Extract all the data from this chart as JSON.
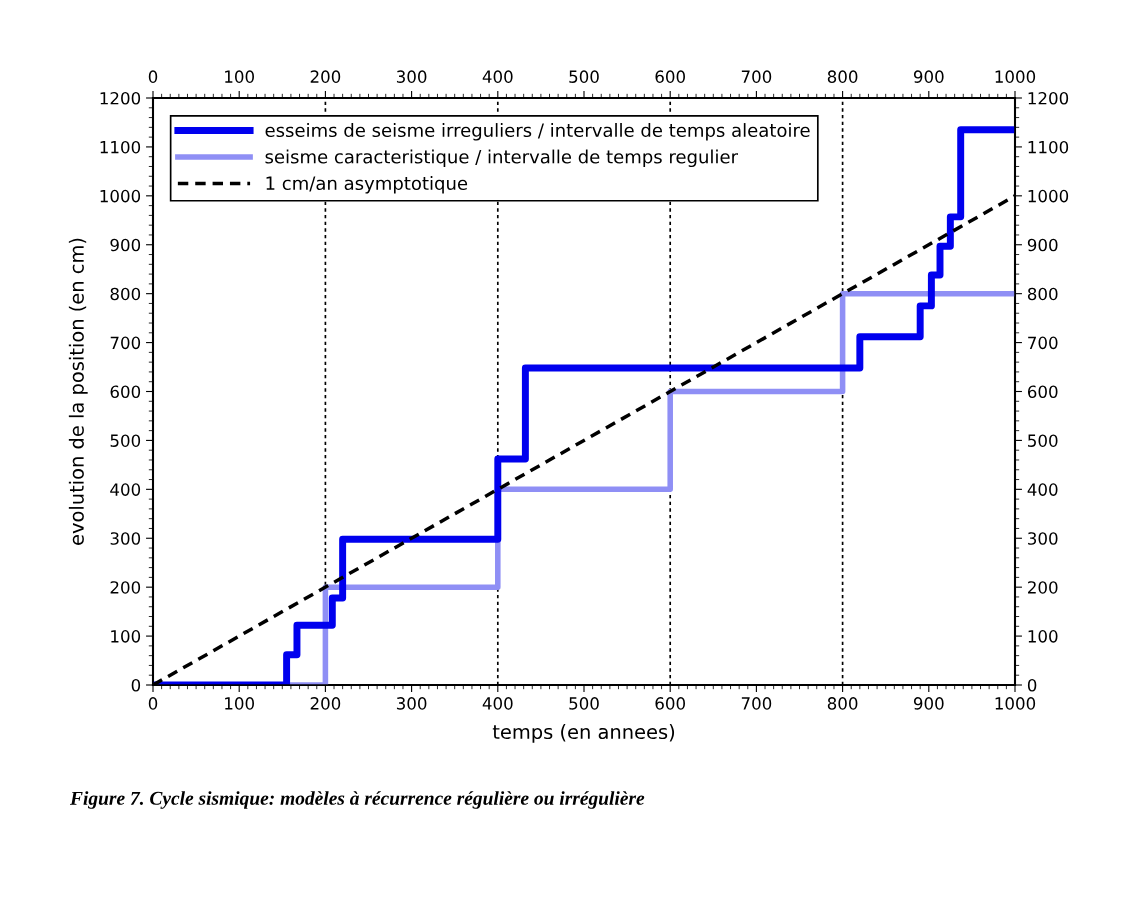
{
  "chart_data": {
    "type": "step",
    "xlabel": "temps (en annees)",
    "ylabel": "evolution de la position (en cm)",
    "xlim": [
      0,
      1000
    ],
    "xticks": [
      0,
      100,
      200,
      300,
      400,
      500,
      600,
      700,
      800,
      900,
      1000
    ],
    "x2lim": [
      0,
      1000
    ],
    "x2ticks": [
      0,
      100,
      200,
      300,
      400,
      500,
      600,
      700,
      800,
      900,
      1000
    ],
    "ylim": [
      0,
      1200
    ],
    "yticks": [
      0,
      100,
      200,
      300,
      400,
      500,
      600,
      700,
      800,
      900,
      1000,
      1100,
      1200
    ],
    "y2lim": [
      0,
      1200
    ],
    "y2ticks": [
      0,
      100,
      200,
      300,
      400,
      500,
      600,
      700,
      800,
      900,
      1000,
      1100,
      1200
    ],
    "series": [
      {
        "name": "esseims de seisme irreguliers / intervalle de temps aleatoire",
        "color": "#0000ee",
        "x": [
          0,
          155,
          167,
          208,
          220,
          400,
          432,
          820,
          890,
          903,
          913,
          925,
          937,
          1000
        ],
        "values": [
          0,
          62,
          122,
          178,
          298,
          462,
          648,
          712,
          775,
          838,
          897,
          957,
          1135,
          1135
        ]
      },
      {
        "name": "seisme caracteristique / intervalle de temps regulier",
        "color": "#8f8ff5",
        "x": [
          0,
          200,
          400,
          600,
          800,
          1000
        ],
        "values": [
          0,
          200,
          400,
          600,
          800,
          800
        ]
      },
      {
        "name": "1 cm/an asymptotique",
        "color": "#000000",
        "type": "line",
        "line_style": "dashed",
        "x": [
          0,
          1000
        ],
        "values": [
          0,
          1000
        ]
      }
    ],
    "ref_lines": [
      {
        "axis": "x",
        "value": 200,
        "line_style": "dotted",
        "color": "#000000"
      },
      {
        "axis": "x",
        "value": 400,
        "line_style": "dotted",
        "color": "#000000"
      },
      {
        "axis": "x",
        "value": 600,
        "line_style": "dotted",
        "color": "#000000"
      },
      {
        "axis": "x",
        "value": 800,
        "line_style": "dotted",
        "color": "#000000"
      }
    ],
    "legend": "top left",
    "grid": false,
    "annotations": [
      "Figure 7. Cycle sismique: modèles à récurrence régulière ou irrégulière"
    ]
  }
}
